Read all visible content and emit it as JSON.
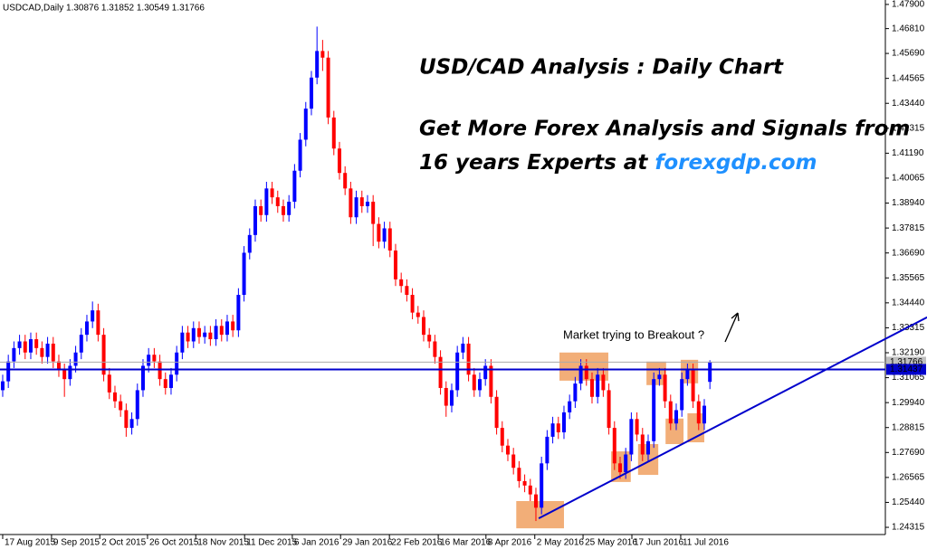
{
  "chart_data": {
    "type": "candlestick",
    "header": "USDCAD,Daily  1.30876 1.31852 1.30549 1.31766",
    "title": "USD/CAD Analysis : Daily Chart",
    "subtitle_line1": "Get More Forex Analysis and Signals from",
    "subtitle_line2": "16 years Experts at ",
    "subtitle_link": "forexgdp.com",
    "annotation": "Market trying to Breakout ?",
    "up_color": "#0000ff",
    "down_color": "#ff0000",
    "xlim": [
      -0.48,
      157.26
    ],
    "ylim": [
      1.2399,
      1.481
    ],
    "xticks": [
      {
        "value": 0,
        "label": "17 Aug 2015"
      },
      {
        "value": 8.7,
        "label": "9 Sep 2015"
      },
      {
        "value": 17.3,
        "label": "2 Oct 2015"
      },
      {
        "value": 25.8,
        "label": "26 Oct 2015"
      },
      {
        "value": 34.4,
        "label": "18 Nov 2015"
      },
      {
        "value": 43.1,
        "label": "11 Dec 2015"
      },
      {
        "value": 51.6,
        "label": "6 Jan 2016"
      },
      {
        "value": 60.2,
        "label": "29 Jan 2016"
      },
      {
        "value": 68.9,
        "label": "22 Feb 2016"
      },
      {
        "value": 77.6,
        "label": "16 Mar 2016"
      },
      {
        "value": 86.1,
        "label": "8 Apr 2016"
      },
      {
        "value": 94.8,
        "label": "2 May 2016"
      },
      {
        "value": 103.4,
        "label": "25 May 2016"
      },
      {
        "value": 112.1,
        "label": "17 Jun 2016"
      },
      {
        "value": 120.8,
        "label": "11 Jul 2016"
      }
    ],
    "yticks": [
      {
        "value": 1.479,
        "label": "1.47900"
      },
      {
        "value": 1.4681,
        "label": "1.46810"
      },
      {
        "value": 1.4569,
        "label": "1.45690"
      },
      {
        "value": 1.44565,
        "label": "1.44565"
      },
      {
        "value": 1.4344,
        "label": "1.43440"
      },
      {
        "value": 1.42315,
        "label": "1.42315"
      },
      {
        "value": 1.4119,
        "label": "1.41190"
      },
      {
        "value": 1.40065,
        "label": "1.40065"
      },
      {
        "value": 1.3894,
        "label": "1.38940"
      },
      {
        "value": 1.37815,
        "label": "1.37815"
      },
      {
        "value": 1.3669,
        "label": "1.36690"
      },
      {
        "value": 1.35565,
        "label": "1.35565"
      },
      {
        "value": 1.3444,
        "label": "1.34440"
      },
      {
        "value": 1.33315,
        "label": "1.33315"
      },
      {
        "value": 1.3219,
        "label": "1.32190"
      },
      {
        "value": 1.31065,
        "label": "1.31065"
      },
      {
        "value": 1.2994,
        "label": "1.29940"
      },
      {
        "value": 1.28815,
        "label": "1.28815"
      },
      {
        "value": 1.2769,
        "label": "1.27690"
      },
      {
        "value": 1.26565,
        "label": "1.26565"
      },
      {
        "value": 1.2544,
        "label": "1.25440"
      },
      {
        "value": 1.24315,
        "label": "1.24315"
      }
    ],
    "current_price": 1.31766,
    "level": 1.31437,
    "level_color": "#0000cc",
    "trendline": {
      "from": [
        95.5,
        1.2472
      ],
      "to": [
        164.7,
        1.3379
      ],
      "color": "#0000cc"
    },
    "zone_color": "#f0a060",
    "zones": [
      [
        91.5,
        100,
        1.2427,
        1.255
      ],
      [
        99.2,
        107.9,
        1.3093,
        1.322
      ],
      [
        108.4,
        111.9,
        1.2636,
        1.2774
      ],
      [
        113.2,
        116.8,
        1.2668,
        1.2807
      ],
      [
        114.7,
        118.2,
        1.3073,
        1.3179
      ],
      [
        118.1,
        121.3,
        1.2807,
        1.2922
      ],
      [
        120.8,
        123.9,
        1.3081,
        1.3187
      ],
      [
        122,
        125,
        1.2815,
        1.2946
      ]
    ],
    "open": [
      1.305,
      1.309,
      1.318,
      1.324,
      1.327,
      1.322,
      1.328,
      1.324,
      1.32,
      1.326,
      1.318,
      1.314,
      1.31,
      1.316,
      1.322,
      1.33,
      1.336,
      1.341,
      1.33,
      1.312,
      1.304,
      1.3,
      1.296,
      1.288,
      1.292,
      1.305,
      1.316,
      1.321,
      1.318,
      1.31,
      1.306,
      1.312,
      1.322,
      1.331,
      1.327,
      1.333,
      1.329,
      1.331,
      1.328,
      1.334,
      1.33,
      1.336,
      1.332,
      1.348,
      1.367,
      1.375,
      1.388,
      1.384,
      1.396,
      1.392,
      1.388,
      1.384,
      1.39,
      1.404,
      1.418,
      1.432,
      1.446,
      1.458,
      1.455,
      1.428,
      1.414,
      1.403,
      1.396,
      1.383,
      1.392,
      1.388,
      1.39,
      1.38,
      1.372,
      1.378,
      1.368,
      1.355,
      1.352,
      1.348,
      1.34,
      1.338,
      1.33,
      1.327,
      1.32,
      1.306,
      1.298,
      1.305,
      1.322,
      1.326,
      1.312,
      1.305,
      1.31,
      1.316,
      1.302,
      1.288,
      1.28,
      1.276,
      1.27,
      1.264,
      1.262,
      1.258,
      1.252,
      1.272,
      1.284,
      1.29,
      1.286,
      1.295,
      1.3,
      1.308,
      1.316,
      1.31,
      1.302,
      1.312,
      1.305,
      1.288,
      1.272,
      1.268,
      1.276,
      1.292,
      1.285,
      1.276,
      1.282,
      1.31,
      1.312,
      1.3,
      1.29,
      1.296,
      1.31,
      1.314,
      1.3,
      1.29,
      1.30876
    ],
    "high": [
      1.312,
      1.321,
      1.327,
      1.33,
      1.33,
      1.331,
      1.331,
      1.327,
      1.329,
      1.329,
      1.321,
      1.317,
      1.319,
      1.325,
      1.333,
      1.339,
      1.345,
      1.344,
      1.333,
      1.315,
      1.307,
      1.303,
      1.299,
      1.295,
      1.308,
      1.319,
      1.324,
      1.324,
      1.321,
      1.313,
      1.315,
      1.325,
      1.334,
      1.334,
      1.336,
      1.336,
      1.334,
      1.334,
      1.337,
      1.337,
      1.339,
      1.339,
      1.351,
      1.37,
      1.378,
      1.391,
      1.391,
      1.399,
      1.399,
      1.395,
      1.391,
      1.393,
      1.407,
      1.421,
      1.435,
      1.449,
      1.469,
      1.463,
      1.458,
      1.431,
      1.417,
      1.406,
      1.399,
      1.395,
      1.395,
      1.393,
      1.393,
      1.383,
      1.381,
      1.381,
      1.371,
      1.358,
      1.355,
      1.351,
      1.343,
      1.341,
      1.333,
      1.33,
      1.323,
      1.309,
      1.308,
      1.325,
      1.329,
      1.329,
      1.315,
      1.313,
      1.319,
      1.319,
      1.305,
      1.291,
      1.283,
      1.279,
      1.273,
      1.267,
      1.265,
      1.261,
      1.275,
      1.287,
      1.293,
      1.293,
      1.298,
      1.303,
      1.311,
      1.319,
      1.319,
      1.313,
      1.315,
      1.315,
      1.308,
      1.291,
      1.275,
      1.279,
      1.295,
      1.295,
      1.288,
      1.285,
      1.313,
      1.315,
      1.315,
      1.303,
      1.299,
      1.313,
      1.317,
      1.317,
      1.303,
      1.301,
      1.31852
    ],
    "low": [
      1.302,
      1.306,
      1.315,
      1.321,
      1.319,
      1.319,
      1.321,
      1.317,
      1.317,
      1.315,
      1.311,
      1.302,
      1.307,
      1.313,
      1.319,
      1.327,
      1.333,
      1.327,
      1.309,
      1.301,
      1.297,
      1.293,
      1.284,
      1.285,
      1.289,
      1.302,
      1.313,
      1.315,
      1.307,
      1.303,
      1.303,
      1.309,
      1.319,
      1.324,
      1.324,
      1.326,
      1.326,
      1.325,
      1.325,
      1.327,
      1.327,
      1.329,
      1.329,
      1.345,
      1.364,
      1.372,
      1.381,
      1.381,
      1.389,
      1.385,
      1.381,
      1.381,
      1.387,
      1.401,
      1.415,
      1.429,
      1.443,
      1.449,
      1.425,
      1.411,
      1.4,
      1.393,
      1.38,
      1.38,
      1.385,
      1.385,
      1.37,
      1.369,
      1.369,
      1.365,
      1.352,
      1.349,
      1.345,
      1.337,
      1.335,
      1.327,
      1.324,
      1.317,
      1.303,
      1.293,
      1.295,
      1.302,
      1.319,
      1.309,
      1.302,
      1.302,
      1.307,
      1.299,
      1.285,
      1.277,
      1.273,
      1.267,
      1.261,
      1.259,
      1.255,
      1.246,
      1.249,
      1.269,
      1.281,
      1.283,
      1.283,
      1.292,
      1.297,
      1.305,
      1.307,
      1.299,
      1.299,
      1.302,
      1.285,
      1.269,
      1.265,
      1.265,
      1.273,
      1.282,
      1.273,
      1.273,
      1.279,
      1.307,
      1.297,
      1.287,
      1.287,
      1.293,
      1.307,
      1.297,
      1.287,
      1.287,
      1.30549
    ],
    "close": [
      1.309,
      1.318,
      1.324,
      1.327,
      1.322,
      1.328,
      1.324,
      1.32,
      1.326,
      1.318,
      1.314,
      1.31,
      1.316,
      1.322,
      1.33,
      1.336,
      1.341,
      1.33,
      1.312,
      1.304,
      1.3,
      1.296,
      1.288,
      1.292,
      1.305,
      1.316,
      1.321,
      1.318,
      1.31,
      1.306,
      1.312,
      1.322,
      1.331,
      1.327,
      1.333,
      1.329,
      1.331,
      1.328,
      1.334,
      1.33,
      1.336,
      1.332,
      1.348,
      1.367,
      1.375,
      1.388,
      1.384,
      1.396,
      1.392,
      1.388,
      1.384,
      1.39,
      1.404,
      1.418,
      1.432,
      1.446,
      1.458,
      1.455,
      1.428,
      1.414,
      1.403,
      1.396,
      1.383,
      1.392,
      1.388,
      1.39,
      1.38,
      1.372,
      1.378,
      1.368,
      1.355,
      1.352,
      1.348,
      1.34,
      1.338,
      1.33,
      1.327,
      1.32,
      1.306,
      1.298,
      1.305,
      1.322,
      1.326,
      1.312,
      1.305,
      1.31,
      1.316,
      1.302,
      1.288,
      1.28,
      1.276,
      1.27,
      1.264,
      1.262,
      1.258,
      1.252,
      1.272,
      1.284,
      1.29,
      1.286,
      1.295,
      1.3,
      1.308,
      1.316,
      1.31,
      1.302,
      1.312,
      1.305,
      1.288,
      1.272,
      1.268,
      1.276,
      1.292,
      1.285,
      1.276,
      1.282,
      1.31,
      1.312,
      1.3,
      1.29,
      1.296,
      1.31,
      1.314,
      1.3,
      1.29,
      1.298,
      1.31766
    ]
  }
}
